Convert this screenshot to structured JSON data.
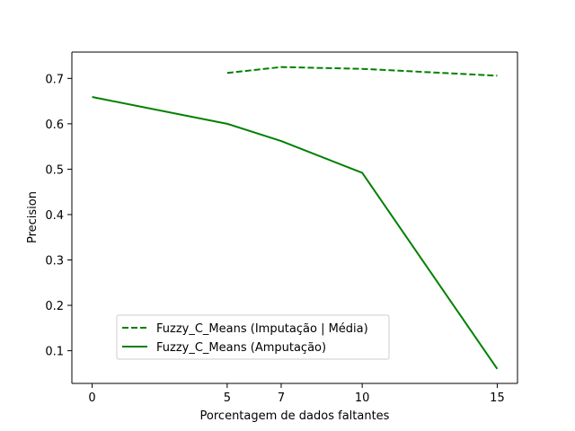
{
  "chart_data": {
    "type": "line",
    "title": "",
    "xlabel": "Porcentagem de dados faltantes",
    "ylabel": "Precision",
    "xticks": [
      0,
      5,
      7,
      10,
      15
    ],
    "yticks": [
      0.1,
      0.2,
      0.3,
      0.4,
      0.5,
      0.6,
      0.7
    ],
    "xlim": [
      -0.75,
      15.75
    ],
    "ylim": [
      0.028,
      0.758
    ],
    "grid": false,
    "legend_position": "lower-left",
    "series": [
      {
        "name": "Fuzzy_C_Means (Imputação | Média)",
        "style": "dashed",
        "color": "#008000",
        "x": [
          5,
          7,
          10,
          15
        ],
        "y": [
          0.712,
          0.725,
          0.721,
          0.706
        ]
      },
      {
        "name": "Fuzzy_C_Means (Amputação)",
        "style": "solid",
        "color": "#008000",
        "x": [
          0,
          5,
          7,
          10,
          15
        ],
        "y": [
          0.659,
          0.6,
          0.562,
          0.492,
          0.06
        ]
      }
    ]
  }
}
